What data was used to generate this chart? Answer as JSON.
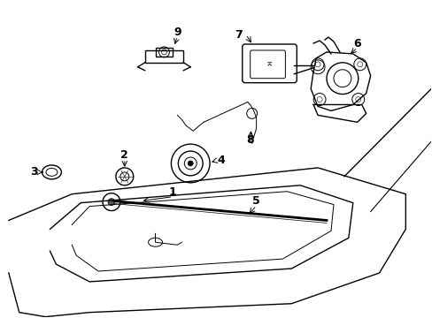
{
  "background_color": "#ffffff",
  "line_color": "#000000",
  "lw": 1.0,
  "tlw": 0.7,
  "fig_width": 4.89,
  "fig_height": 3.6,
  "dpi": 100
}
